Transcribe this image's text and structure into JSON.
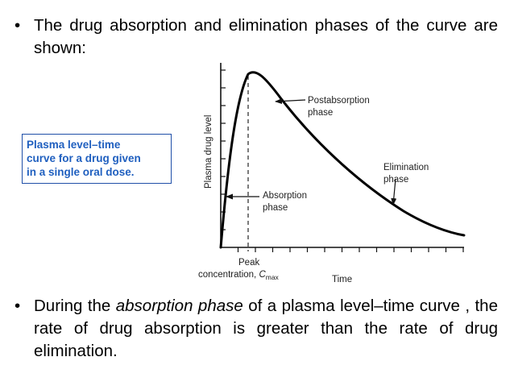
{
  "slide": {
    "bullet_glyph": "•",
    "bullet1": {
      "text": "The drug absorption and elimination phases of the curve are shown:"
    },
    "callout": {
      "lines": [
        "Plasma level–time",
        "curve for a drug given",
        "in a single oral dose."
      ],
      "color": "#1f5fbf"
    },
    "bullet2": {
      "before": "During the ",
      "emphasis": "absorption phase",
      "after": " of a plasma level–time curve , the rate of drug absorption is greater than the rate of drug elimination."
    }
  },
  "figure": {
    "ylabel": "Plasma drug level",
    "xlabel": "Time",
    "labels": {
      "postabsorption": [
        "Postabsorption",
        "phase"
      ],
      "elimination": [
        "Elimination",
        "phase"
      ],
      "absorption": [
        "Absorption",
        "phase"
      ],
      "peak_line1": "Peak",
      "peak_line2_prefix": "concentration, ",
      "peak_symbol": "C",
      "peak_subscript": "max"
    }
  }
}
